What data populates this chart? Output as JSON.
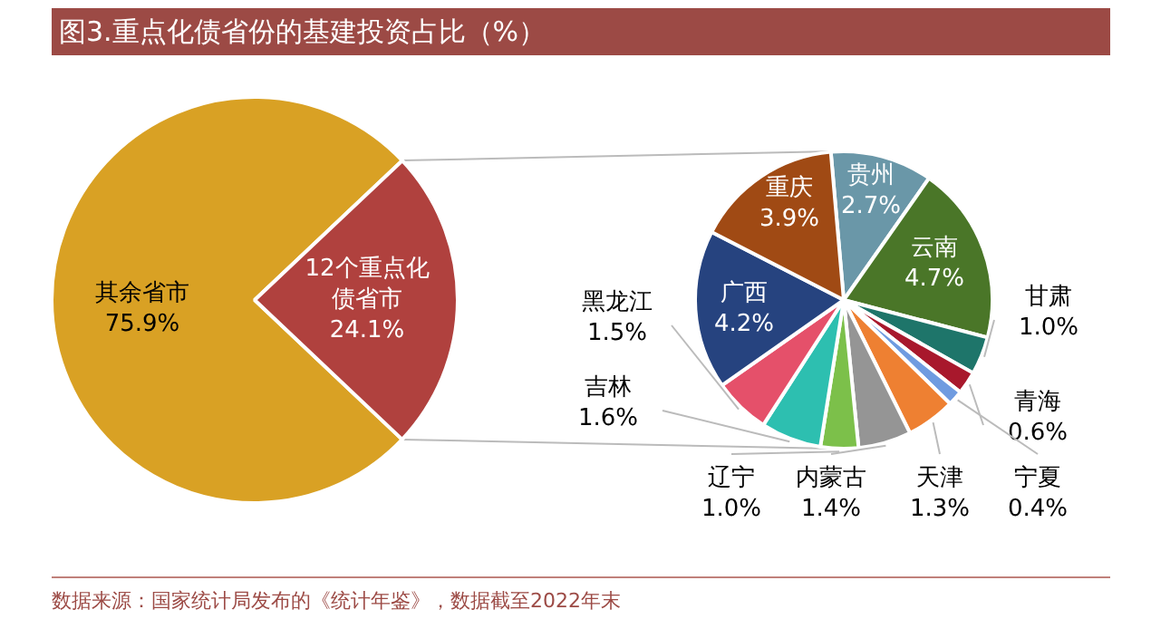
{
  "chart_data": [
    {
      "type": "pie",
      "title": "图3.重点化债省份的基建投资占比（%）",
      "categories": [
        "其余省市",
        "12个重点化债省市"
      ],
      "values": [
        75.9,
        24.1
      ],
      "colors": [
        "#d9a124",
        "#b0413e"
      ],
      "value_labels": [
        "75.9%",
        "24.1%"
      ],
      "annotations": [
        "数据来源：国家统计局发布的《统计年鉴》，数据截至2022年末"
      ]
    },
    {
      "type": "pie",
      "categories": [
        "贵州",
        "云南",
        "甘肃",
        "青海",
        "宁夏",
        "天津",
        "内蒙古",
        "辽宁",
        "吉林",
        "黑龙江",
        "广西",
        "重庆"
      ],
      "values": [
        2.7,
        4.7,
        1.0,
        0.6,
        0.4,
        1.3,
        1.4,
        1.0,
        1.6,
        1.5,
        4.2,
        3.9
      ],
      "colors": [
        "#6a97a8",
        "#4a7628",
        "#1e756a",
        "#a8182c",
        "#6f9be0",
        "#ee8032",
        "#959595",
        "#7cc04a",
        "#2dbfb0",
        "#e5506a",
        "#26437f",
        "#a04a14"
      ],
      "value_labels": [
        "2.7%",
        "4.7%",
        "1.0%",
        "0.6%",
        "0.4%",
        "1.3%",
        "1.4%",
        "1.0%",
        "1.6%",
        "1.5%",
        "4.2%",
        "3.9%"
      ]
    }
  ]
}
